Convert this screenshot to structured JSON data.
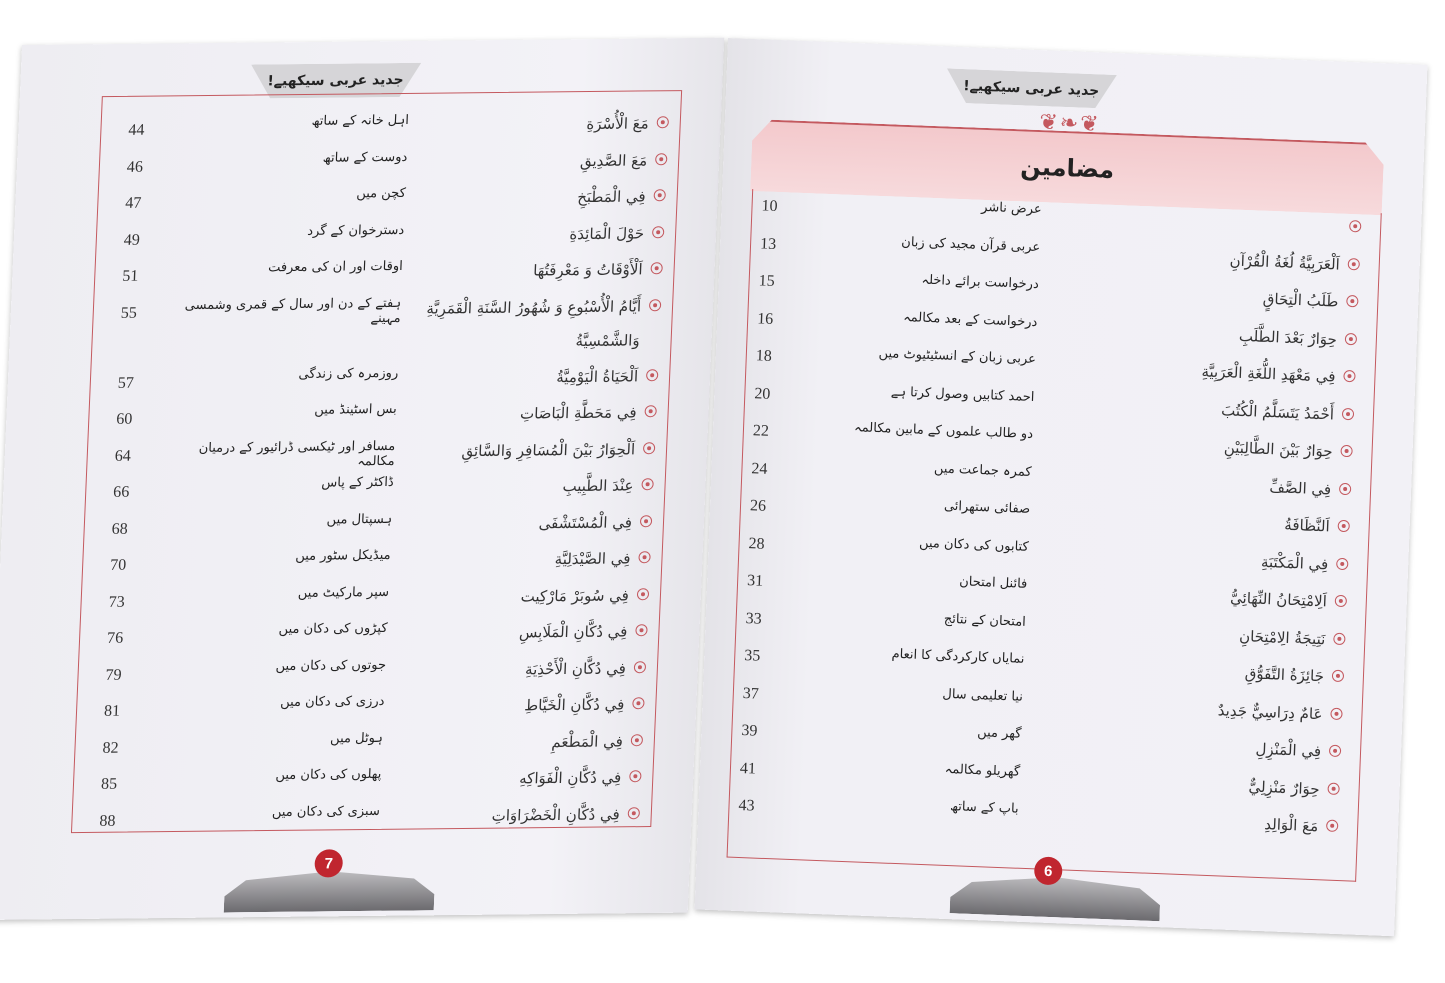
{
  "header": "جدید عربی سیکھیے!",
  "colors": {
    "accent": "#c4595f",
    "page_number_bg": "#c0262f",
    "title_band": "#f3c9cc"
  },
  "right_page": {
    "title": "مضامین",
    "page_number": "6",
    "entries": [
      {
        "arabic": "",
        "urdu": "عرض ناشر",
        "page": "10"
      },
      {
        "arabic": "اَلْعَرَبِيَّةُ لُغَةُ الْقُرْآنِ",
        "urdu": "عربی قرآن مجید کی زبان",
        "page": "13"
      },
      {
        "arabic": "طَلَبُ الْتِحَاقٍ",
        "urdu": "درخواست برائے داخلہ",
        "page": "15"
      },
      {
        "arabic": "حِوَارٌ بَعْدَ الطَّلَبِ",
        "urdu": "درخواست کے بعد مکالمہ",
        "page": "16"
      },
      {
        "arabic": "فِي مَعْهَدِ اللُّغَةِ الْعَرَبِيَّةِ",
        "urdu": "عربی زبان کے انسٹیٹیوٹ میں",
        "page": "18"
      },
      {
        "arabic": "أَحْمَدُ يَتَسَلَّمُ الْكُتُبَ",
        "urdu": "احمد کتابیں وصول کرتا ہے",
        "page": "20"
      },
      {
        "arabic": "حِوَارٌ بَيْنَ الطَّالِبَيْنِ",
        "urdu": "دو طالب علموں کے مابین مکالمہ",
        "page": "22"
      },
      {
        "arabic": "فِي الصَّفِّ",
        "urdu": "کمرہ جماعت میں",
        "page": "24"
      },
      {
        "arabic": "اَلنَّظَافَةُ",
        "urdu": "صفائی ستھرائی",
        "page": "26"
      },
      {
        "arabic": "فِي الْمَكْتَبَةِ",
        "urdu": "کتابوں کی دکان میں",
        "page": "28"
      },
      {
        "arabic": "اَلِامْتِحَانُ النِّهَائِيُّ",
        "urdu": "فائنل امتحان",
        "page": "31"
      },
      {
        "arabic": "نَتِيجَةُ الِامْتِحَانِ",
        "urdu": "امتحان کے نتائج",
        "page": "33"
      },
      {
        "arabic": "جَائِزَةُ التَّفَوُّقِ",
        "urdu": "نمایاں کارکردگی کا انعام",
        "page": "35"
      },
      {
        "arabic": "عَامٌ دِرَاسِيٌّ جَدِيدٌ",
        "urdu": "نیا تعلیمی سال",
        "page": "37"
      },
      {
        "arabic": "فِي الْمَنْزِلِ",
        "urdu": "گھر میں",
        "page": "39"
      },
      {
        "arabic": "حِوَارٌ مَنْزِلِيٌّ",
        "urdu": "گھریلو مکالمہ",
        "page": "41"
      },
      {
        "arabic": "مَعَ الْوَالِدِ",
        "urdu": "باپ کے ساتھ",
        "page": "43"
      }
    ]
  },
  "left_page": {
    "page_number": "7",
    "entries": [
      {
        "arabic": "مَعَ الْأُسْرَةِ",
        "urdu": "اہل خانہ کے ساتھ",
        "page": "44"
      },
      {
        "arabic": "مَعَ الصَّدِيقِ",
        "urdu": "دوست کے ساتھ",
        "page": "46"
      },
      {
        "arabic": "فِي الْمَطْبَخِ",
        "urdu": "کچن میں",
        "page": "47"
      },
      {
        "arabic": "حَوْلَ الْمَائِدَةِ",
        "urdu": "دسترخوان کے گرد",
        "page": "49"
      },
      {
        "arabic": "اَلْأَوْقَاتُ وَ مَعْرِفَتُهَا",
        "urdu": "اوقات اور ان کی معرفت",
        "page": "51"
      },
      {
        "arabic": "أَيَّامُ الْأُسْبُوعِ وَ شُهُورُ السَّنَةِ الْقَمَرِيَّةِ وَالشَّمْسِيَّةُ",
        "urdu": "ہفتے کے دن اور سال کے قمری وشمسی مہینے",
        "page": "55"
      },
      {
        "arabic": "اَلْحَيَاةُ الْيَوْمِيَّةُ",
        "urdu": "روزمرہ کی زندگی",
        "page": "57"
      },
      {
        "arabic": "فِي مَحَطَّةِ الْبَاصَاتِ",
        "urdu": "بس اسٹینڈ میں",
        "page": "60"
      },
      {
        "arabic": "اَلْحِوَارُ بَيْنَ الْمُسَافِرِ وَالسَّائِقِ",
        "urdu": "مسافر اور ٹیکسی ڈرائیور کے درمیان مکالمہ",
        "page": "64"
      },
      {
        "arabic": "عِنْدَ الطَّبِيبِ",
        "urdu": "ڈاکٹر کے پاس",
        "page": "66"
      },
      {
        "arabic": "فِي الْمُسْتَشْفَى",
        "urdu": "ہسپتال میں",
        "page": "68"
      },
      {
        "arabic": "فِي الصَّيْدَلِيَّةِ",
        "urdu": "میڈیکل سٹور میں",
        "page": "70"
      },
      {
        "arabic": "فِي سُوبَرْ مَارْكِيت",
        "urdu": "سپر مارکیٹ میں",
        "page": "73"
      },
      {
        "arabic": "فِي دُكَّانِ الْمَلَابِسِ",
        "urdu": "کپڑوں کی دکان میں",
        "page": "76"
      },
      {
        "arabic": "فِي دُكَّانِ الْأَحْذِيَةِ",
        "urdu": "جوتوں کی دکان میں",
        "page": "79"
      },
      {
        "arabic": "فِي دُكَّانِ الْخَيَّاطِ",
        "urdu": "درزی کی دکان میں",
        "page": "81"
      },
      {
        "arabic": "فِي الْمَطْعَمِ",
        "urdu": "ہوٹل میں",
        "page": "82"
      },
      {
        "arabic": "فِي دُكَّانِ الْفَوَاكِهِ",
        "urdu": "پھلوں کی دکان میں",
        "page": "85"
      },
      {
        "arabic": "فِي دُكَّانِ الْخَضْرَاوَاتِ",
        "urdu": "سبزی کی دکان میں",
        "page": "88"
      }
    ]
  }
}
